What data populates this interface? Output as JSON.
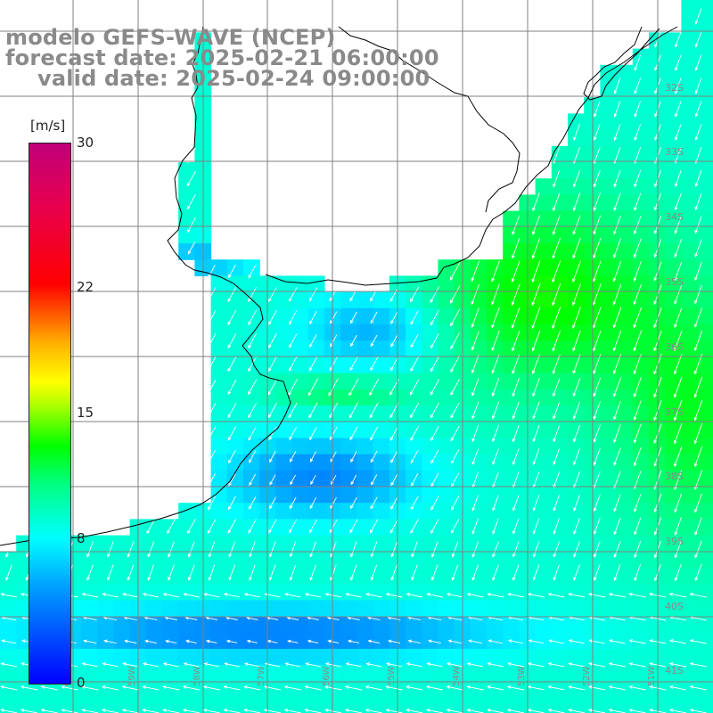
{
  "title": {
    "line1": "modelo GEFS-WAVE (NCEP)",
    "line2": "forecast date: 2025-02-21 06:00:00",
    "line3": "valid date: 2025-02-24 09:00:00"
  },
  "colorbar": {
    "unit": "[m/s]",
    "ticks": [
      {
        "label": "30",
        "value": 30
      },
      {
        "label": "22",
        "value": 22
      },
      {
        "label": "15",
        "value": 15
      },
      {
        "label": "8",
        "value": 8
      },
      {
        "label": "0",
        "value": 0
      }
    ],
    "min": 0,
    "max": 30
  },
  "lat_labels": [
    "32S",
    "33S",
    "34S",
    "35S",
    "36S",
    "37S",
    "38S",
    "39S",
    "40S",
    "41S"
  ],
  "lon_labels": [
    "60W",
    "59W",
    "58W",
    "57W",
    "56W",
    "55W",
    "54W",
    "53W",
    "52W",
    "51W"
  ],
  "colors": {
    "title": "#8a8a8a",
    "grid": "#808080",
    "coast": "#000000",
    "arrow": "#ffffff",
    "land": "#ffffff"
  }
}
